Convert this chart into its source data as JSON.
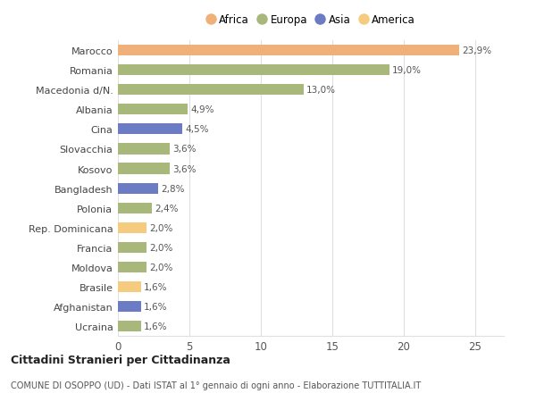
{
  "categories": [
    "Ucraina",
    "Afghanistan",
    "Brasile",
    "Moldova",
    "Francia",
    "Rep. Dominicana",
    "Polonia",
    "Bangladesh",
    "Kosovo",
    "Slovacchia",
    "Cina",
    "Albania",
    "Macedonia d/N.",
    "Romania",
    "Marocco"
  ],
  "values": [
    1.6,
    1.6,
    1.6,
    2.0,
    2.0,
    2.0,
    2.4,
    2.8,
    3.6,
    3.6,
    4.5,
    4.9,
    13.0,
    19.0,
    23.9
  ],
  "colors": [
    "#a8b87a",
    "#6b7cc4",
    "#f5cc7f",
    "#a8b87a",
    "#a8b87a",
    "#f5cc7f",
    "#a8b87a",
    "#6b7cc4",
    "#a8b87a",
    "#a8b87a",
    "#6b7cc4",
    "#a8b87a",
    "#a8b87a",
    "#a8b87a",
    "#f0b07a"
  ],
  "legend": [
    {
      "label": "Africa",
      "color": "#f0b07a"
    },
    {
      "label": "Europa",
      "color": "#a8b87a"
    },
    {
      "label": "Asia",
      "color": "#6b7cc4"
    },
    {
      "label": "America",
      "color": "#f5cc7f"
    }
  ],
  "title": "Cittadini Stranieri per Cittadinanza",
  "subtitle": "COMUNE DI OSOPPO (UD) - Dati ISTAT al 1° gennaio di ogni anno - Elaborazione TUTTITALIA.IT",
  "xlim": [
    0,
    27
  ],
  "background_color": "#ffffff",
  "grid_color": "#e0e0e0"
}
